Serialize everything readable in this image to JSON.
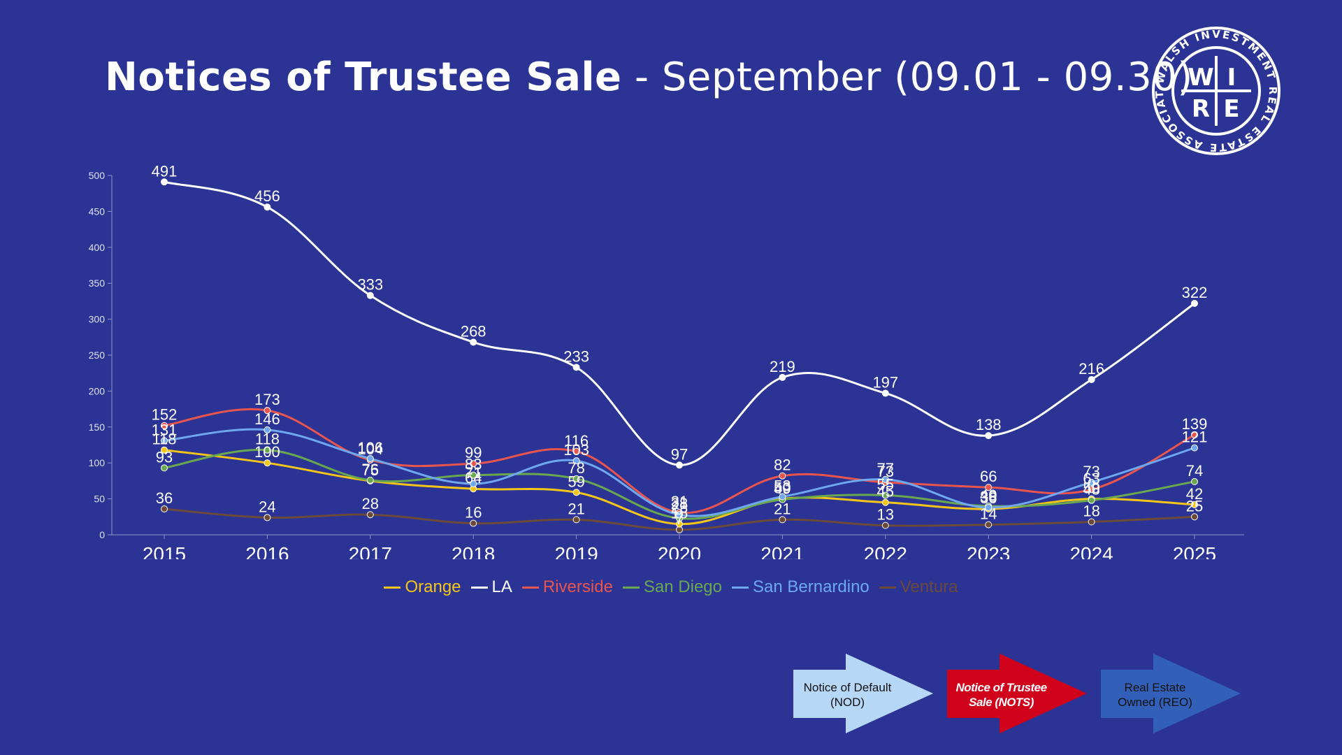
{
  "title": {
    "bold": "Notices of Trustee Sale",
    "rest": " - September (09.01 - 09.30)"
  },
  "logo": {
    "ring_text": "WALSH INVESTMENT REAL ESTATE ASSOCIATES",
    "letters": [
      "W",
      "I",
      "R",
      "E"
    ]
  },
  "chart_data": {
    "type": "line",
    "title": "",
    "xlabel": "",
    "ylabel": "",
    "ylim": [
      0,
      500
    ],
    "yticks": [
      0,
      50,
      100,
      150,
      200,
      250,
      300,
      350,
      400,
      450,
      500
    ],
    "categories": [
      "2015",
      "2016",
      "2017",
      "2018",
      "2019",
      "2020",
      "2021",
      "2022",
      "2023",
      "2024",
      "2025"
    ],
    "grid": false,
    "legend": "bottom",
    "series": [
      {
        "name": "Orange",
        "color": "#f5c518",
        "values": [
          118,
          100,
          75,
          64,
          59,
          15,
          50,
          45,
          36,
          50,
          42
        ]
      },
      {
        "name": "LA",
        "color": "#ffffff",
        "values": [
          491,
          456,
          333,
          268,
          233,
          97,
          219,
          197,
          138,
          216,
          322
        ]
      },
      {
        "name": "Riverside",
        "color": "#e8554e",
        "values": [
          152,
          173,
          104,
          99,
          116,
          31,
          82,
          73,
          66,
          63,
          139
        ]
      },
      {
        "name": "San Diego",
        "color": "#6aa84f",
        "values": [
          93,
          118,
          76,
          83,
          78,
          23,
          49,
          55,
          40,
          48,
          74
        ]
      },
      {
        "name": "San Bernardino",
        "color": "#6fa8f0",
        "values": [
          131,
          146,
          106,
          71,
          103,
          28,
          53,
          77,
          38,
          73,
          121
        ]
      },
      {
        "name": "Ventura",
        "color": "#6b4a3a",
        "values": [
          36,
          24,
          28,
          16,
          21,
          7,
          21,
          13,
          14,
          18,
          25
        ]
      }
    ]
  },
  "process": {
    "steps": [
      {
        "label": "Notice of Default (NOD)",
        "color": "#b7d7f7"
      },
      {
        "label": "Notice of Trustee Sale (NOTS)",
        "color": "#d0021b"
      },
      {
        "label": "Real Estate Owned (REO)",
        "color": "#3260b8"
      }
    ]
  }
}
